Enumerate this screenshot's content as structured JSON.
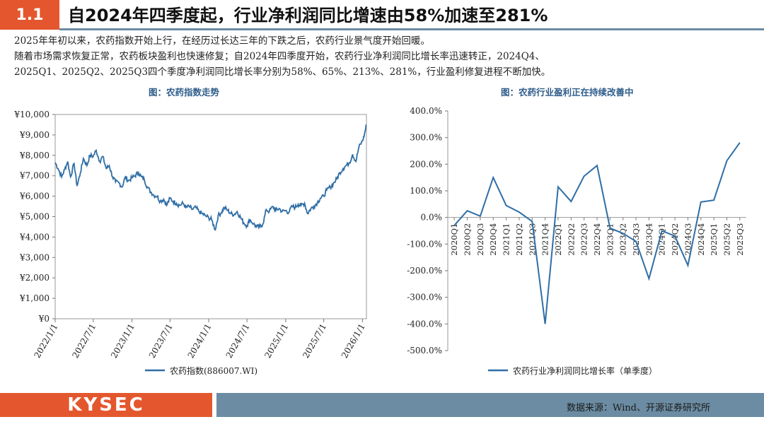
{
  "header": {
    "section_number": "1.1",
    "title": "自2024年四季度起，行业净利润同比增速由58%加速至281%"
  },
  "body": {
    "paragraph_1": "2025年年初以来，农药指数开始上行，在经历过长达三年的下跌之后，农药行业景气度开始回暖。",
    "paragraph_2a": "随着市场需求恢复正常，农药板块盈利也快速修复；自2024年四季度开始，农药行业净利润同比增长率迅速转正，2024Q4、",
    "paragraph_2b": "2025Q1、2025Q2、2025Q3四个季度净利润同比增长率分别为58%、65%、213%、281%，行业盈利修复进程不断加快。"
  },
  "chart_data": [
    {
      "type": "line",
      "caption": "图：农药指数走势",
      "series_name": "农药指数(886007.WI)",
      "y_ticks": [
        "¥0",
        "¥1,000",
        "¥2,000",
        "¥3,000",
        "¥4,000",
        "¥5,000",
        "¥6,000",
        "¥7,000",
        "¥8,000",
        "¥9,000",
        "¥10,000"
      ],
      "x_ticks": [
        "2022/1/1",
        "2022/7/1",
        "2023/1/1",
        "2023/7/1",
        "2024/1/1",
        "2024/7/1",
        "2025/1/1",
        "2025/7/1",
        "2026/1/1"
      ],
      "ylim": [
        0,
        10000
      ],
      "xlim": [
        "2022/1/1",
        "2026/1/20"
      ],
      "series_color": "#2f6ea6",
      "points": [
        [
          "2022/1/1",
          7650
        ],
        [
          "2022/1/15",
          7350
        ],
        [
          "2022/2/1",
          6950
        ],
        [
          "2022/2/15",
          7300
        ],
        [
          "2022/3/1",
          7700
        ],
        [
          "2022/3/15",
          6950
        ],
        [
          "2022/4/1",
          7600
        ],
        [
          "2022/4/15",
          6500
        ],
        [
          "2022/5/1",
          7150
        ],
        [
          "2022/5/15",
          7850
        ],
        [
          "2022/6/1",
          7500
        ],
        [
          "2022/6/15",
          8000
        ],
        [
          "2022/7/1",
          7950
        ],
        [
          "2022/7/15",
          8250
        ],
        [
          "2022/8/1",
          7700
        ],
        [
          "2022/8/15",
          7950
        ],
        [
          "2022/9/1",
          7350
        ],
        [
          "2022/9/15",
          7500
        ],
        [
          "2022/10/1",
          6950
        ],
        [
          "2022/10/15",
          6700
        ],
        [
          "2022/11/1",
          6650
        ],
        [
          "2022/11/15",
          6450
        ],
        [
          "2022/12/1",
          6950
        ],
        [
          "2022/12/15",
          6750
        ],
        [
          "2023/1/1",
          6900
        ],
        [
          "2023/1/15",
          7000
        ],
        [
          "2023/2/1",
          7150
        ],
        [
          "2023/2/15",
          6950
        ],
        [
          "2023/3/1",
          6800
        ],
        [
          "2023/3/15",
          6450
        ],
        [
          "2023/4/1",
          6200
        ],
        [
          "2023/4/15",
          6050
        ],
        [
          "2023/5/1",
          6000
        ],
        [
          "2023/5/15",
          5750
        ],
        [
          "2023/6/1",
          5850
        ],
        [
          "2023/6/15",
          5550
        ],
        [
          "2023/7/1",
          5900
        ],
        [
          "2023/7/15",
          5750
        ],
        [
          "2023/8/1",
          5650
        ],
        [
          "2023/8/15",
          5550
        ],
        [
          "2023/9/1",
          5650
        ],
        [
          "2023/9/15",
          5450
        ],
        [
          "2023/10/1",
          5500
        ],
        [
          "2023/10/15",
          5350
        ],
        [
          "2023/11/1",
          5450
        ],
        [
          "2023/11/15",
          5250
        ],
        [
          "2023/12/1",
          5150
        ],
        [
          "2023/12/15",
          5050
        ],
        [
          "2024/1/1",
          4950
        ],
        [
          "2024/1/15",
          4850
        ],
        [
          "2024/2/1",
          4350
        ],
        [
          "2024/2/15",
          5050
        ],
        [
          "2024/3/1",
          5200
        ],
        [
          "2024/3/15",
          5450
        ],
        [
          "2024/4/1",
          5300
        ],
        [
          "2024/4/15",
          5150
        ],
        [
          "2024/5/1",
          5100
        ],
        [
          "2024/5/15",
          5250
        ],
        [
          "2024/6/1",
          4950
        ],
        [
          "2024/6/15",
          4700
        ],
        [
          "2024/7/1",
          4550
        ],
        [
          "2024/7/15",
          4850
        ],
        [
          "2024/8/1",
          4650
        ],
        [
          "2024/8/15",
          4500
        ],
        [
          "2024/9/1",
          4500
        ],
        [
          "2024/9/15",
          4650
        ],
        [
          "2024/10/1",
          5350
        ],
        [
          "2024/10/15",
          5250
        ],
        [
          "2024/11/1",
          5500
        ],
        [
          "2024/11/15",
          5300
        ],
        [
          "2024/12/1",
          5400
        ],
        [
          "2024/12/15",
          5250
        ],
        [
          "2025/1/1",
          5300
        ],
        [
          "2025/1/15",
          5200
        ],
        [
          "2025/2/1",
          5500
        ],
        [
          "2025/2/15",
          5450
        ],
        [
          "2025/3/1",
          5600
        ],
        [
          "2025/3/15",
          5550
        ],
        [
          "2025/4/1",
          5650
        ],
        [
          "2025/4/15",
          5150
        ],
        [
          "2025/5/1",
          5400
        ],
        [
          "2025/5/15",
          5500
        ],
        [
          "2025/6/1",
          5700
        ],
        [
          "2025/6/15",
          5900
        ],
        [
          "2025/7/1",
          6000
        ],
        [
          "2025/7/15",
          6300
        ],
        [
          "2025/8/1",
          6450
        ],
        [
          "2025/8/15",
          6600
        ],
        [
          "2025/9/1",
          6850
        ],
        [
          "2025/9/15",
          7150
        ],
        [
          "2025/10/1",
          7350
        ],
        [
          "2025/10/15",
          7500
        ],
        [
          "2025/11/1",
          7650
        ],
        [
          "2025/11/15",
          8050
        ],
        [
          "2025/12/1",
          7700
        ],
        [
          "2025/12/15",
          8400
        ],
        [
          "2026/1/1",
          8700
        ],
        [
          "2026/1/10",
          9000
        ],
        [
          "2026/1/20",
          9500
        ]
      ]
    },
    {
      "type": "line",
      "caption": "图：农药行业盈利正在持续改善中",
      "series_name": "农药行业净利润同比增长率（单季度）",
      "y_ticks": [
        "400.0%",
        "300.0%",
        "200.0%",
        "100.0%",
        "0.0%",
        "-100.0%",
        "-200.0%",
        "-300.0%",
        "-400.0%",
        "-500.0%"
      ],
      "ylim": [
        -500,
        400
      ],
      "series_color": "#2f6ea6",
      "categories": [
        "2020Q1",
        "2020Q2",
        "2020Q3",
        "2020Q4",
        "2021Q1",
        "2021Q2",
        "2021Q3",
        "2021Q4",
        "2022Q1",
        "2022Q2",
        "2022Q3",
        "2022Q4",
        "2023Q1",
        "2023Q2",
        "2023Q3",
        "2023Q4",
        "2024Q1",
        "2024Q2",
        "2024Q3",
        "2024Q4",
        "2025Q1",
        "2025Q2",
        "2025Q3"
      ],
      "tick_labels": [
        "2020Q1",
        "2020Q2",
        "2020Q3",
        "2020Q4",
        "2021Q1",
        "2021Q2",
        "2021Q3",
        "2021Q4",
        "2022Q1",
        "2022Q2",
        "2022Q3",
        "2022Q4",
        "2023Q1",
        "2023Q2",
        "2023Q3",
        "2023Q4",
        "2024Q1",
        "2024Q2",
        "2024Q3",
        "2024Q4",
        "2025Q1",
        "2025Q2",
        "2025Q3"
      ],
      "values": [
        -30,
        25,
        5,
        150,
        45,
        20,
        -15,
        -400,
        115,
        60,
        155,
        195,
        -40,
        -60,
        -90,
        -230,
        -50,
        -70,
        -180,
        58,
        65,
        213,
        281
      ]
    }
  ],
  "footer": {
    "logo_text": "KYSEC",
    "source": "数据来源：Wind、开源证券研究所"
  }
}
